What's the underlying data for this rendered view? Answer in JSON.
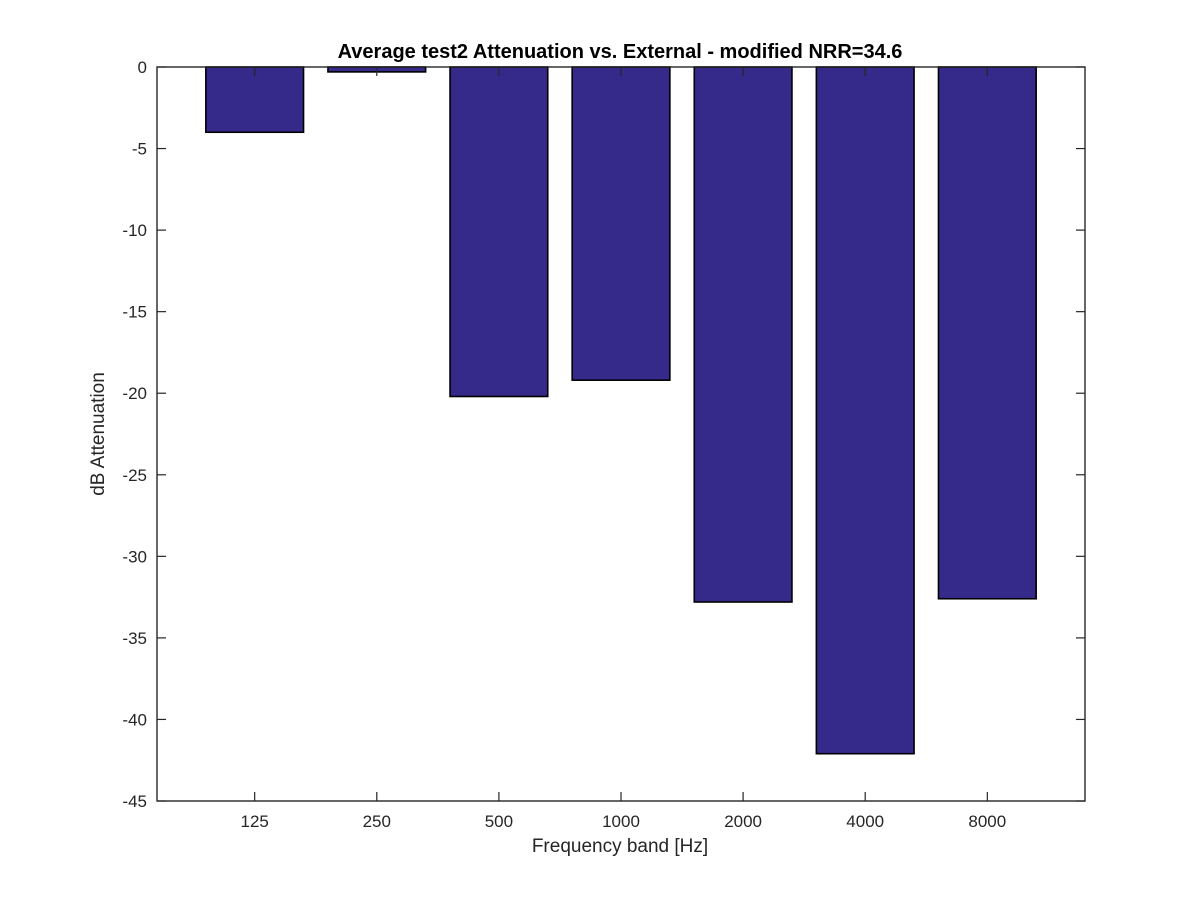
{
  "chart_data": {
    "type": "bar",
    "title": "Average test2 Attenuation vs. External - modified NRR=34.6",
    "xlabel": "Frequency band [Hz]",
    "ylabel": "dB Attenuation",
    "categories": [
      "125",
      "250",
      "500",
      "1000",
      "2000",
      "4000",
      "8000"
    ],
    "values": [
      -4.0,
      -0.3,
      -20.2,
      -19.2,
      -32.8,
      -42.1,
      -32.6
    ],
    "ylim": [
      -45,
      0
    ],
    "yticks": [
      0,
      -5,
      -10,
      -15,
      -20,
      -25,
      -30,
      -35,
      -40,
      -45
    ],
    "bar_color": "#35298a",
    "grid": false,
    "legend": "none"
  }
}
